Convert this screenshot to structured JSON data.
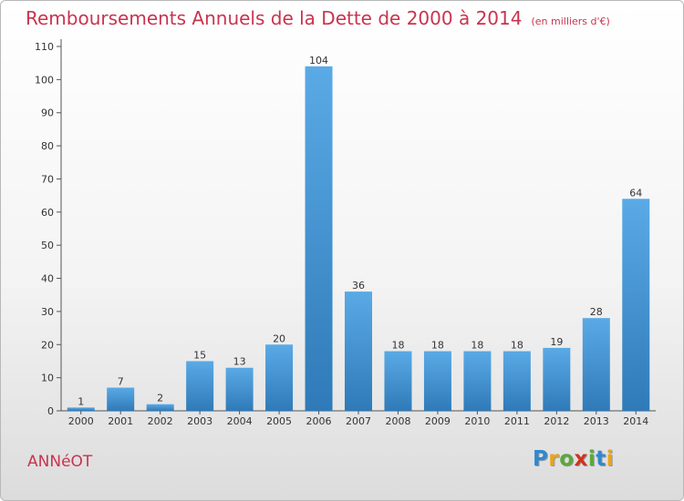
{
  "header": {
    "title": "Remboursements Annuels de la Dette de 2000 à 2014",
    "unit": "(en milliers d'€)"
  },
  "footer": {
    "commune": "ANNéOT",
    "logo_letters": [
      {
        "ch": "P",
        "color": "#2f88d0"
      },
      {
        "ch": "r",
        "color": "#e8a41c"
      },
      {
        "ch": "o",
        "color": "#5aa83a"
      },
      {
        "ch": "x",
        "color": "#d0321e"
      },
      {
        "ch": "i",
        "color": "#5aa83a"
      },
      {
        "ch": "t",
        "color": "#2f88d0"
      },
      {
        "ch": "i",
        "color": "#e8a41c"
      }
    ]
  },
  "chart_data": {
    "type": "bar",
    "title": "Remboursements Annuels de la Dette de 2000 à 2014",
    "subtitle": "(en milliers d'€)",
    "categories": [
      "2000",
      "2001",
      "2002",
      "2003",
      "2004",
      "2005",
      "2006",
      "2007",
      "2008",
      "2009",
      "2010",
      "2011",
      "2012",
      "2013",
      "2014"
    ],
    "values": [
      1,
      7,
      2,
      15,
      13,
      20,
      104,
      36,
      18,
      18,
      18,
      18,
      19,
      28,
      64
    ],
    "ylim": [
      0,
      110
    ],
    "yticks": [
      0,
      10,
      20,
      30,
      40,
      50,
      60,
      70,
      80,
      90,
      100,
      110
    ],
    "grid": false,
    "bar_color_top": "#5aaae6",
    "bar_color_bottom": "#2f7ab8",
    "xlabel": "",
    "ylabel": ""
  }
}
